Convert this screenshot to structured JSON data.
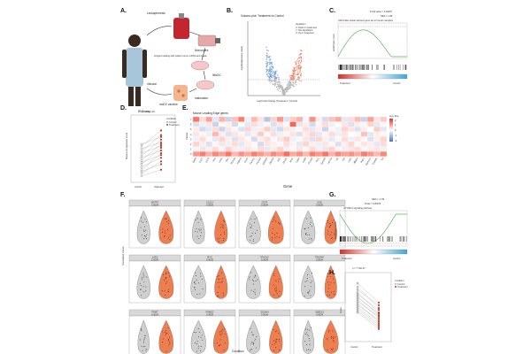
{
  "panels": {
    "A": "A.",
    "B": "B.",
    "C": "C.",
    "D": "D.",
    "E": "E.",
    "F": "F.",
    "G": "G.",
    "H": "H."
  },
  "panel_a": {
    "steps": [
      "Leukapheresis",
      "Monocytes",
      "Antigen loading with patient tumor mRNA and lysate",
      "iMoDC",
      "maturation",
      "Infusion",
      "moDC vaccine",
      "RNA seq"
    ]
  },
  "panel_b": {
    "title": "Volcano plot: Treatment vs Control",
    "xlabel": "Log2 Fold Change (Treatment / Control)",
    "ylabel": "-log10(adjusted p-value)",
    "legend_title": "regulation",
    "legend": [
      "Down in treatment",
      "Not significant",
      "Up in treatment"
    ],
    "colors": {
      "down": "#7fa6d6",
      "ns": "#b9b9b9",
      "up": "#ef8a6f"
    }
  },
  "panel_c": {
    "padj": "P.Adj value = 3.00007",
    "nes": "NES = 1.86",
    "title": "UDC1-like cluster-derived gene set in human samples",
    "ylabel": "enrichment score",
    "bar_left": "Treatment",
    "bar_right": "Control"
  },
  "panel_d": {
    "pval": "p = 1.03e-06",
    "ylabel": "Mouse LE signature score",
    "legend_title": "Condition",
    "legend": [
      "Control",
      "Treatment"
    ],
    "xlabels": [
      "control",
      "treatment"
    ],
    "chart_data": {
      "type": "scatter",
      "title": "",
      "xlabel": "",
      "ylabel": "Mouse LE signature score",
      "categories": [
        "control",
        "treatment"
      ],
      "pairs": [
        [
          0.05,
          0.12
        ],
        [
          0.08,
          0.21
        ],
        [
          0.1,
          0.18
        ],
        [
          0.12,
          0.3
        ],
        [
          0.15,
          0.25
        ],
        [
          0.18,
          0.36
        ],
        [
          0.2,
          0.28
        ],
        [
          0.22,
          0.4
        ],
        [
          0.25,
          0.33
        ],
        [
          0.27,
          0.45
        ],
        [
          0.3,
          0.38
        ],
        [
          0.32,
          0.5
        ],
        [
          0.35,
          0.42
        ],
        [
          0.38,
          0.55
        ],
        [
          0.4,
          0.48
        ]
      ]
    }
  },
  "panel_e": {
    "title": "Mouse Leading Edge genes",
    "ylabel": "Cluster",
    "xlabel": "Gene",
    "legend_title": "Avg. Exp",
    "legend_ticks": [
      "2",
      "1",
      "0",
      "-1",
      "-2"
    ],
    "clusters": [
      "7",
      "6",
      "5",
      "4",
      "3",
      "2",
      "1",
      "0"
    ],
    "genes": [
      "Batf3",
      "Ccl17",
      "Cd74",
      "Il4i1",
      "Lad1",
      "Myc",
      "Myo1g",
      "Pdlim4",
      "Pnmt",
      "Psme1",
      "Psme2",
      "S100a4",
      "Ube2l3",
      "Aif1",
      "Anxa1",
      "Arl4c",
      "Cd52",
      "Cd63",
      "Cxcl16",
      "Fth1",
      "Gpr183",
      "H2-Aa",
      "Id2",
      "Il1b",
      "Lsp1",
      "Nfkbia",
      "Rgs1",
      "Samsn1",
      "Tmsb4x",
      "Tnf"
    ],
    "chart_data": {
      "type": "heatmap",
      "title": "Mouse Leading Edge genes",
      "xlabel": "Gene",
      "ylabel": "Cluster",
      "zlim": [
        -2,
        2
      ],
      "values": [
        [
          1.6,
          0.4,
          1.1,
          -0.3,
          0.9,
          -0.6,
          0.7,
          1.5,
          -0.2,
          0.8,
          0.3,
          -0.8,
          0.5,
          1.2,
          -0.4,
          0.6,
          0.9,
          -0.1,
          1.3,
          0.2,
          -0.5,
          0.7,
          1.0,
          -0.3,
          0.4,
          0.8,
          -0.6,
          1.1,
          0.3,
          0.6
        ],
        [
          -0.4,
          -0.2,
          0.3,
          -0.6,
          0.1,
          0.2,
          -0.5,
          0.0,
          -0.3,
          0.4,
          -0.2,
          0.1,
          -0.4,
          0.3,
          -0.1,
          1.8,
          -0.3,
          0.2,
          -0.5,
          0.1,
          0.4,
          -0.2,
          0.0,
          0.3,
          -0.4,
          0.2,
          -0.1,
          0.5,
          -0.3,
          0.1
        ],
        [
          0.2,
          -0.5,
          -0.3,
          0.4,
          -0.6,
          0.3,
          0.1,
          -0.4,
          0.5,
          -0.2,
          0.2,
          0.6,
          -0.3,
          -0.5,
          0.3,
          -0.2,
          0.1,
          0.4,
          -0.3,
          0.2,
          -0.6,
          0.1,
          -0.2,
          0.5,
          0.3,
          -0.4,
          0.2,
          0.0,
          0.6,
          -0.3
        ],
        [
          0.3,
          0.1,
          -0.2,
          0.8,
          0.2,
          -0.4,
          0.3,
          0.1,
          -0.3,
          0.2,
          0.6,
          -0.1,
          0.4,
          -0.2,
          0.1,
          0.3,
          -0.4,
          0.2,
          0.5,
          -0.3,
          0.1,
          0.4,
          -0.2,
          0.3,
          0.0,
          -0.1,
          0.7,
          -0.3,
          0.2,
          0.1
        ],
        [
          -0.2,
          0.4,
          0.1,
          -0.3,
          0.5,
          0.2,
          -0.4,
          0.3,
          0.1,
          -0.5,
          0.2,
          0.4,
          -0.1,
          0.3,
          0.6,
          -0.2,
          0.1,
          0.3,
          -0.4,
          0.5,
          0.2,
          -0.3,
          0.1,
          0.4,
          -0.2,
          0.3,
          0.1,
          -0.4,
          0.2,
          0.5
        ],
        [
          0.5,
          0.2,
          -0.4,
          0.1,
          0.3,
          -0.2,
          0.4,
          -0.3,
          0.2,
          0.1,
          -0.5,
          0.3,
          0.2,
          -0.1,
          0.4,
          0.1,
          -0.3,
          0.5,
          0.2,
          -0.2,
          0.3,
          0.1,
          -0.4,
          0.2,
          0.5,
          -0.1,
          0.3,
          0.2,
          -0.3,
          0.4
        ],
        [
          0.1,
          -0.3,
          0.2,
          0.4,
          -0.1,
          0.5,
          0.2,
          -0.2,
          0.3,
          0.1,
          0.4,
          -0.3,
          0.2,
          0.5,
          -0.2,
          0.1,
          0.3,
          -0.1,
          0.4,
          0.2,
          -0.3,
          0.5,
          0.1,
          -0.2,
          0.3,
          0.4,
          -0.1,
          0.2,
          0.3,
          -0.2
        ],
        [
          1.2,
          1.5,
          0.9,
          1.4,
          1.1,
          1.6,
          0.8,
          1.3,
          1.0,
          1.5,
          1.2,
          0.9,
          1.4,
          1.1,
          1.7,
          1.0,
          1.3,
          0.8,
          1.5,
          1.2,
          1.6,
          0.9,
          1.4,
          1.1,
          1.3,
          1.0,
          1.5,
          1.2,
          0.8,
          1.4
        ]
      ]
    }
  },
  "panel_f": {
    "ylabel": "Normalized counts",
    "xlabel": "Condition",
    "xlabels": [
      "control",
      "treatment"
    ],
    "genes": [
      {
        "name": "BATF3",
        "p": "0.0004"
      },
      {
        "name": "CCL17",
        "p": "0.0005"
      },
      {
        "name": "CD74",
        "p": "0.0004"
      },
      {
        "name": "IL4I1",
        "p": "0.0005"
      },
      {
        "name": "LAD1",
        "p": "0.0004"
      },
      {
        "name": "MYC",
        "p": "0.0005"
      },
      {
        "name": "MYO1G",
        "p": "0.0004"
      },
      {
        "name": "PDLIM4",
        "p": "0.0004"
      },
      {
        "name": "PNMT",
        "p": "0.0004"
      },
      {
        "name": "PSME2",
        "p": "0.0005"
      },
      {
        "name": "S100A4",
        "p": "0.0004"
      },
      {
        "name": "UBE2L3",
        "p": "0.0004"
      }
    ]
  },
  "panel_g": {
    "nes": "NES = -1.59",
    "padj": "P.Adj = 0.00079",
    "title": "mTORC1 signaling pathway",
    "ylabel": "enrichment score",
    "bar_left": "Treatment",
    "bar_right": "Control"
  },
  "panel_h": {
    "pval": "p = 7.79e-07",
    "ylabel": "Score",
    "legend_title": "condition",
    "legend": [
      "Control",
      "Treatment"
    ],
    "xlabels": [
      "Control",
      "Treatment"
    ],
    "chart_data": {
      "type": "scatter",
      "title": "",
      "xlabel": "",
      "ylabel": "Score",
      "categories": [
        "Control",
        "Treatment"
      ],
      "pairs": [
        [
          0.62,
          0.41
        ],
        [
          0.58,
          0.35
        ],
        [
          0.55,
          0.38
        ],
        [
          0.52,
          0.3
        ],
        [
          0.5,
          0.33
        ],
        [
          0.48,
          0.27
        ],
        [
          0.46,
          0.29
        ],
        [
          0.44,
          0.24
        ],
        [
          0.42,
          0.26
        ],
        [
          0.4,
          0.2
        ],
        [
          0.38,
          0.22
        ],
        [
          0.36,
          0.18
        ],
        [
          0.34,
          0.16
        ],
        [
          0.32,
          0.14
        ],
        [
          0.3,
          0.12
        ]
      ]
    }
  }
}
